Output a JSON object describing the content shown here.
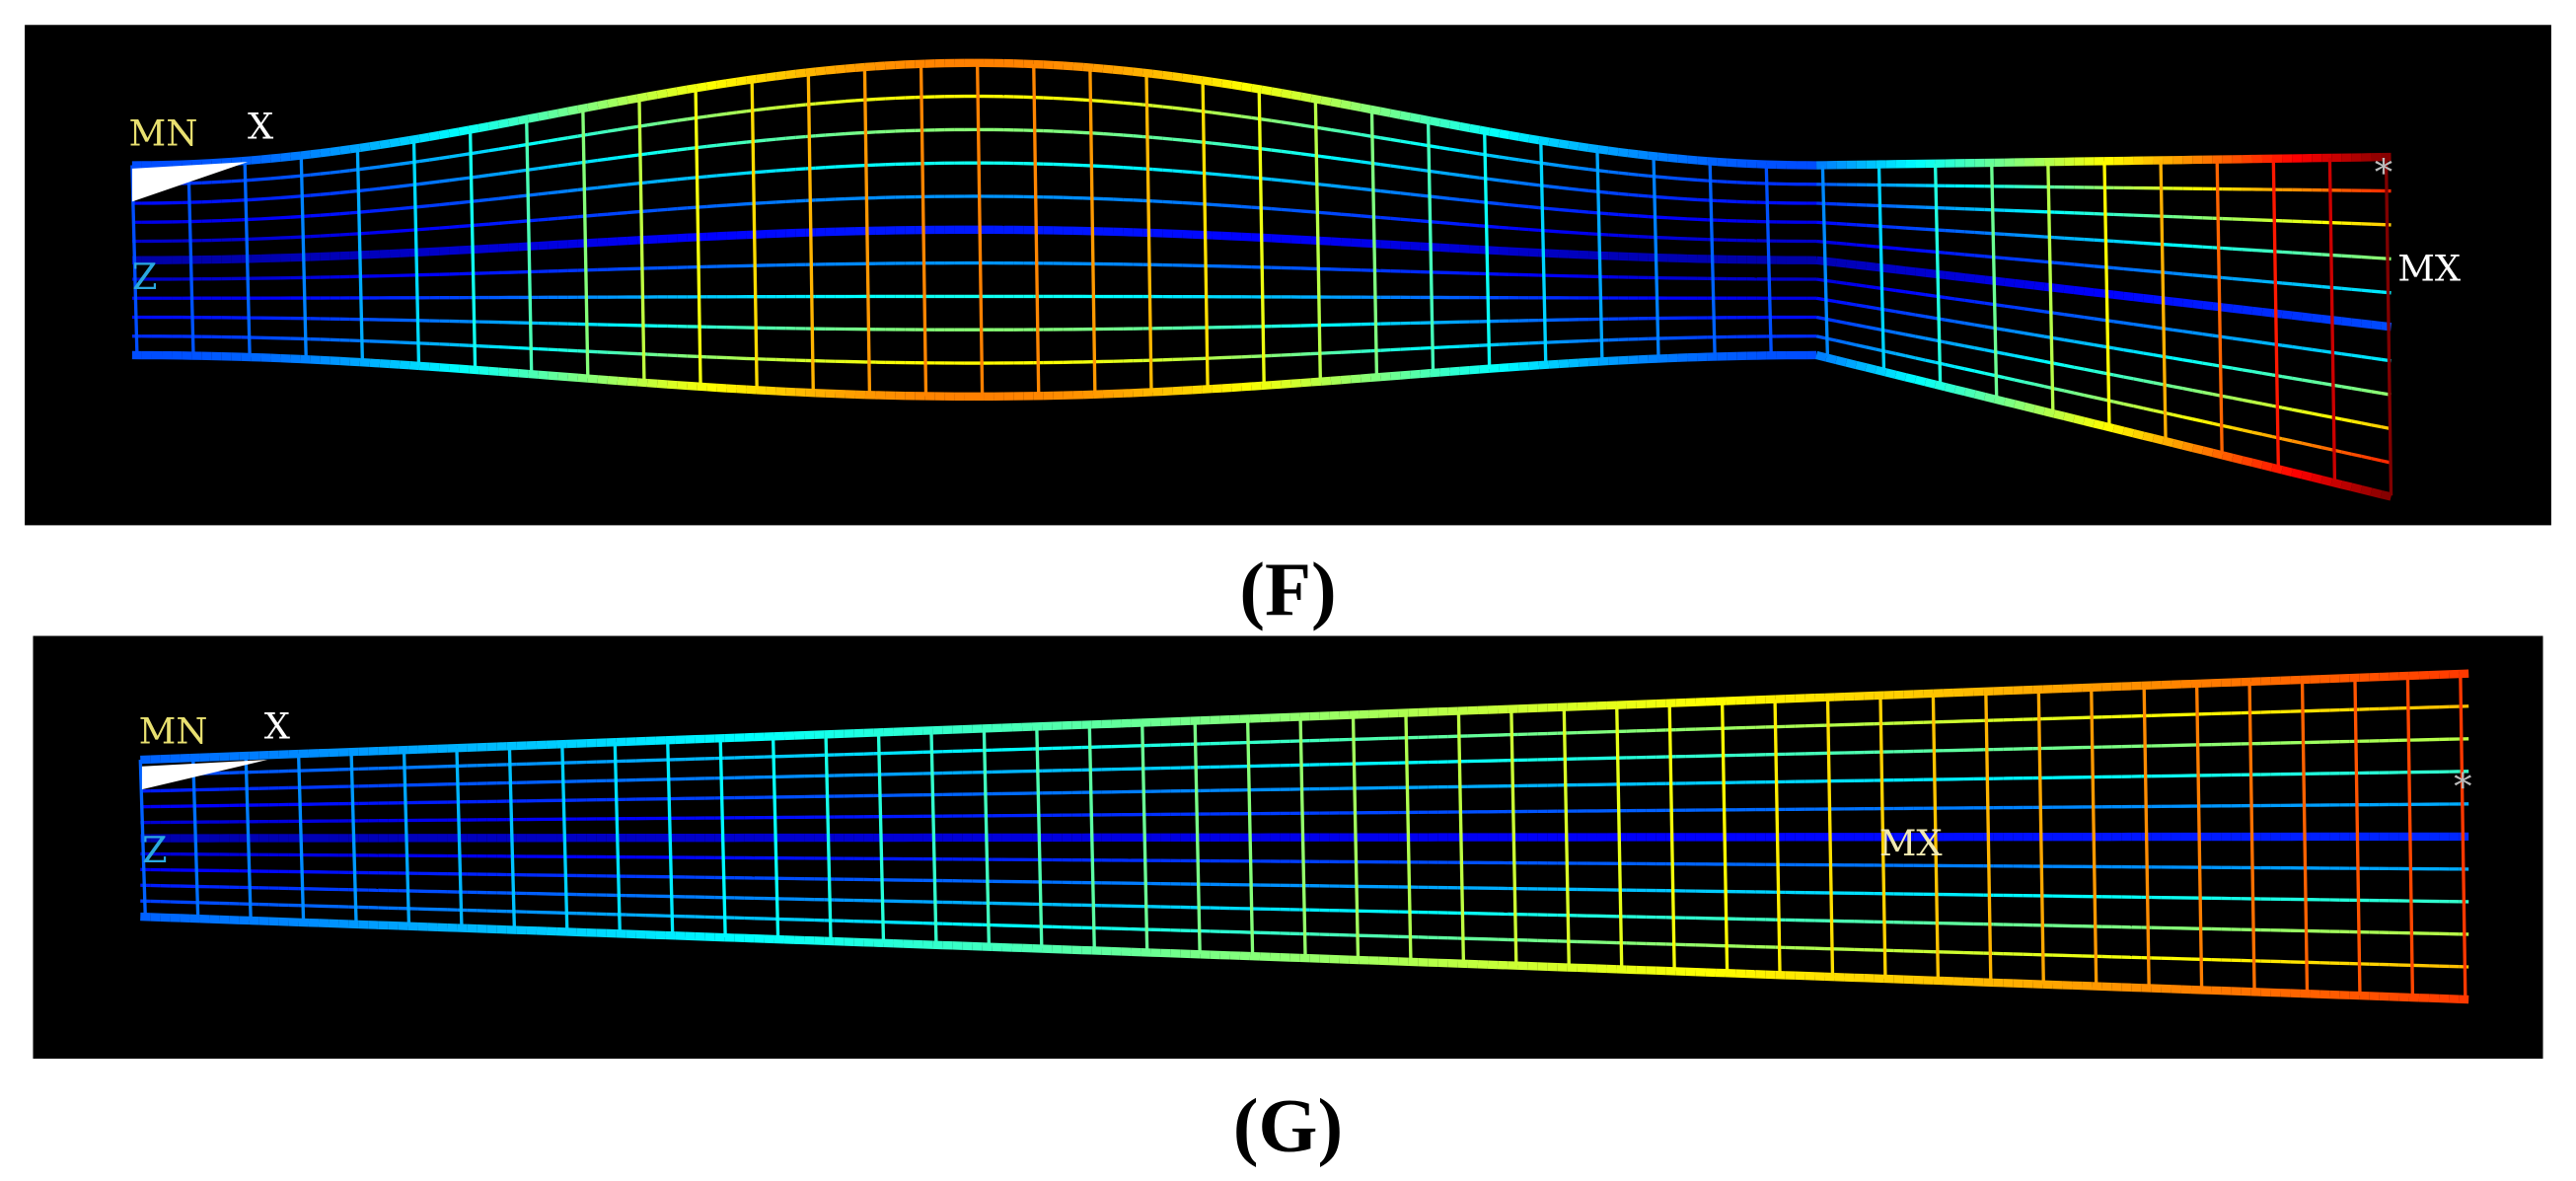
{
  "panels": [
    {
      "labels": {
        "min": "MN",
        "x_axis": "X",
        "z_axis": "Z",
        "max": "MX",
        "marker": "*"
      },
      "caption": "(F)"
    },
    {
      "labels": {
        "min": "MN",
        "x_axis": "X",
        "z_axis": "Z",
        "max": "MX",
        "marker": "*"
      },
      "caption": "(G)"
    }
  ]
}
